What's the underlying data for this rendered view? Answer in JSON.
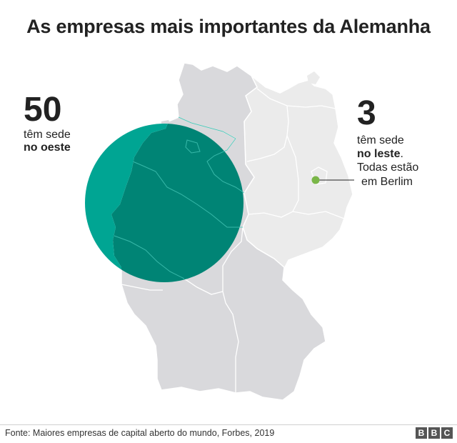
{
  "title": "As empresas mais importantes da Alemanha",
  "west": {
    "count": "50",
    "line1": "têm sede",
    "line2": "no oeste"
  },
  "east": {
    "count": "3",
    "line1": "têm sede",
    "line2_bold": "no leste",
    "line2_tail": ".",
    "line3": "Todas estão",
    "line4": "em Berlim"
  },
  "source": "Fonte: Maiores empresas de capital aberto do mundo, Forbes, 2019",
  "logo": [
    "B",
    "B",
    "C"
  ],
  "colors": {
    "west_circle": "#00a593",
    "west_overlap": "#008475",
    "berlin_dot": "#7ab648",
    "map_west": "#d9d9dc",
    "map_east": "#ebebeb"
  }
}
